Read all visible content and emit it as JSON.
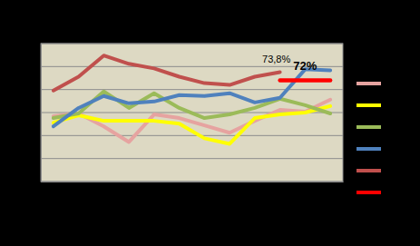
{
  "chart_data": {
    "type": "line",
    "categories": [
      null,
      null,
      null,
      null,
      null,
      null,
      null,
      null,
      null,
      null,
      null,
      null
    ],
    "ylim": [
      50,
      80
    ],
    "yticks": [
      50,
      55,
      60,
      65,
      70,
      75,
      80
    ],
    "grid": true,
    "legend": "right",
    "tick_labels": false,
    "series": [
      {
        "color": "#e6a3a0",
        "values": [
          64.2,
          64.8,
          62,
          58.6,
          64.6,
          63.8,
          62.2,
          60.6,
          63.2,
          65.6,
          65.2,
          67.8
        ]
      },
      {
        "color": "#ffff00",
        "values": [
          62.8,
          64.4,
          63.2,
          63.2,
          63.2,
          62.6,
          59.4,
          58.2,
          63.8,
          64.6,
          65,
          66.4
        ]
      },
      {
        "color": "#9bbb59",
        "values": [
          63.8,
          64.8,
          69.6,
          66,
          69.2,
          66,
          63.8,
          64.6,
          66,
          68,
          66.6,
          64.8
        ]
      },
      {
        "color": "#4f81bd",
        "values": [
          62,
          66,
          68.6,
          67,
          67.4,
          68.8,
          68.6,
          69.2,
          67.2,
          68.2,
          74.4,
          74.2
        ]
      },
      {
        "color": "#c0504d",
        "values": [
          69.8,
          72.8,
          77.4,
          75.6,
          74.6,
          72.8,
          71.4,
          71,
          72.8,
          73.8,
          null,
          null
        ],
        "data_labels": true,
        "value_labels": [
          null,
          null,
          null,
          null,
          null,
          null,
          null,
          null,
          null,
          "73,8%",
          null,
          null
        ]
      },
      {
        "color": "#ff0000",
        "values": [
          null,
          null,
          null,
          null,
          null,
          null,
          null,
          null,
          null,
          72,
          72,
          72
        ],
        "data_labels": true,
        "value_labels": [
          null,
          null,
          null,
          null,
          null,
          null,
          null,
          null,
          null,
          null,
          "72%",
          null
        ]
      }
    ]
  }
}
